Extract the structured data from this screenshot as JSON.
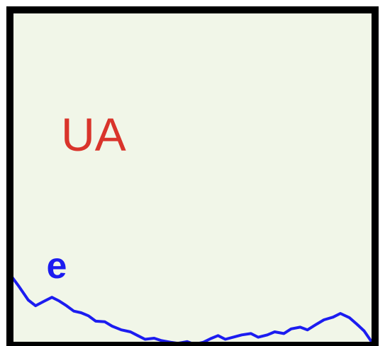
{
  "colors": {
    "panel_background": "#f1f6e8",
    "border": "#000000",
    "region_label": "#d9342b",
    "series_line": "#1c1cf0"
  },
  "chart_data": {
    "type": "line",
    "title": "",
    "xlabel": "",
    "ylabel": "",
    "xlim": [
      0,
      100
    ],
    "ylim": [
      0,
      100
    ],
    "grid": false,
    "annotations": [
      {
        "text": "UA",
        "x": 14,
        "y": 58
      },
      {
        "text": "e",
        "x": 10,
        "y": 20
      }
    ],
    "series": [
      {
        "x": [
          0,
          2.5,
          5,
          7,
          9.5,
          11.5,
          13.5,
          15.5,
          17.5,
          19.5,
          21.5,
          23.5,
          26,
          28,
          30.5,
          33,
          35,
          37,
          39.5,
          41.5,
          44,
          46,
          48.5,
          50.5,
          53,
          55,
          57,
          59,
          61.5,
          63.5,
          66,
          68,
          70.5,
          72.5,
          75,
          77,
          79.5,
          81.5,
          84,
          86,
          88.5,
          90.5,
          93,
          95,
          97,
          99,
          100
        ],
        "y": [
          21.2,
          17.5,
          13.5,
          11.8,
          13.2,
          14.3,
          13.2,
          11.8,
          10.2,
          9.7,
          8.8,
          7.2,
          7.0,
          5.7,
          4.6,
          4.0,
          2.9,
          1.8,
          2.1,
          1.4,
          0.9,
          0.6,
          1.1,
          0.3,
          0.9,
          2.0,
          2.9,
          1.8,
          2.5,
          3.1,
          3.5,
          2.4,
          3.1,
          4.0,
          3.5,
          4.9,
          5.4,
          4.6,
          6.3,
          7.6,
          8.4,
          9.5,
          8.2,
          6.3,
          4.3,
          1.1,
          0.2
        ]
      }
    ]
  }
}
